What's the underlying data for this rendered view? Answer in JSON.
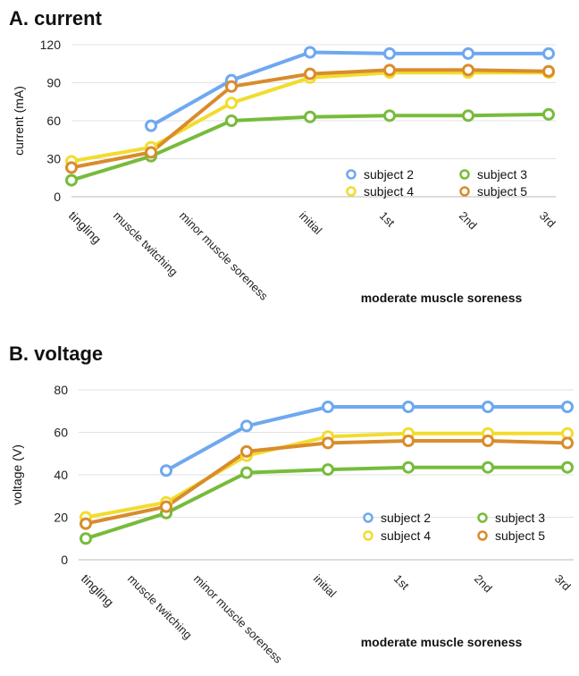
{
  "chart_data": [
    {
      "type": "line",
      "title": "A. current",
      "ylabel": "current (mA)",
      "xlabel": "moderate muscle soreness",
      "ylim": [
        0,
        120
      ],
      "yticks": [
        0,
        30,
        60,
        90,
        120
      ],
      "categories": [
        "tingling",
        "muscle twitching",
        "minor muscle soreness",
        "initial",
        "1st",
        "2nd",
        "3rd"
      ],
      "grid": true,
      "legend": "bottom-right",
      "series": [
        {
          "name": "subject 2",
          "color": "#6fa8f0",
          "points": [
            [
              1,
              56
            ],
            [
              2,
              92
            ],
            [
              3,
              114
            ],
            [
              4,
              113
            ],
            [
              5,
              113
            ],
            [
              6,
              113
            ]
          ]
        },
        {
          "name": "subject 3",
          "color": "#78bb3c",
          "points": [
            [
              0,
              13
            ],
            [
              1,
              32
            ],
            [
              2,
              60
            ],
            [
              3,
              63
            ],
            [
              4,
              64
            ],
            [
              5,
              64
            ],
            [
              6,
              65
            ]
          ]
        },
        {
          "name": "subject 4",
          "color": "#f2dc2e",
          "points": [
            [
              0,
              28
            ],
            [
              1,
              39
            ],
            [
              2,
              74
            ],
            [
              3,
              94
            ],
            [
              4,
              98
            ],
            [
              5,
              98
            ],
            [
              6,
              98
            ]
          ]
        },
        {
          "name": "subject 5",
          "color": "#d98c2d",
          "points": [
            [
              0,
              23
            ],
            [
              1,
              35
            ],
            [
              2,
              87
            ],
            [
              3,
              97
            ],
            [
              4,
              100
            ],
            [
              5,
              100
            ],
            [
              6,
              99
            ]
          ]
        }
      ]
    },
    {
      "type": "line",
      "title": "B. voltage",
      "ylabel": "voltage (V)",
      "xlabel": "moderate muscle soreness",
      "ylim": [
        0,
        80
      ],
      "yticks": [
        0,
        20,
        40,
        60,
        80
      ],
      "categories": [
        "tingling",
        "muscle twitching",
        "minor muscle soreness",
        "initial",
        "1st",
        "2nd",
        "3rd"
      ],
      "grid": true,
      "legend": "bottom-right",
      "series": [
        {
          "name": "subject 2",
          "color": "#6fa8f0",
          "points": [
            [
              1,
              42
            ],
            [
              2,
              63
            ],
            [
              3,
              72
            ],
            [
              4,
              72
            ],
            [
              5,
              72
            ],
            [
              6,
              72
            ]
          ]
        },
        {
          "name": "subject 3",
          "color": "#78bb3c",
          "points": [
            [
              0,
              10
            ],
            [
              1,
              22
            ],
            [
              2,
              41
            ],
            [
              3,
              42.5
            ],
            [
              4,
              43.5
            ],
            [
              5,
              43.5
            ],
            [
              6,
              43.5
            ]
          ]
        },
        {
          "name": "subject 4",
          "color": "#f2dc2e",
          "points": [
            [
              0,
              20
            ],
            [
              1,
              27
            ],
            [
              2,
              49
            ],
            [
              3,
              58
            ],
            [
              4,
              59.5
            ],
            [
              5,
              59.5
            ],
            [
              6,
              59.5
            ]
          ]
        },
        {
          "name": "subject 5",
          "color": "#d98c2d",
          "points": [
            [
              0,
              17
            ],
            [
              1,
              25
            ],
            [
              2,
              51
            ],
            [
              3,
              55
            ],
            [
              4,
              56
            ],
            [
              5,
              56
            ],
            [
              6,
              55
            ]
          ]
        }
      ]
    }
  ]
}
